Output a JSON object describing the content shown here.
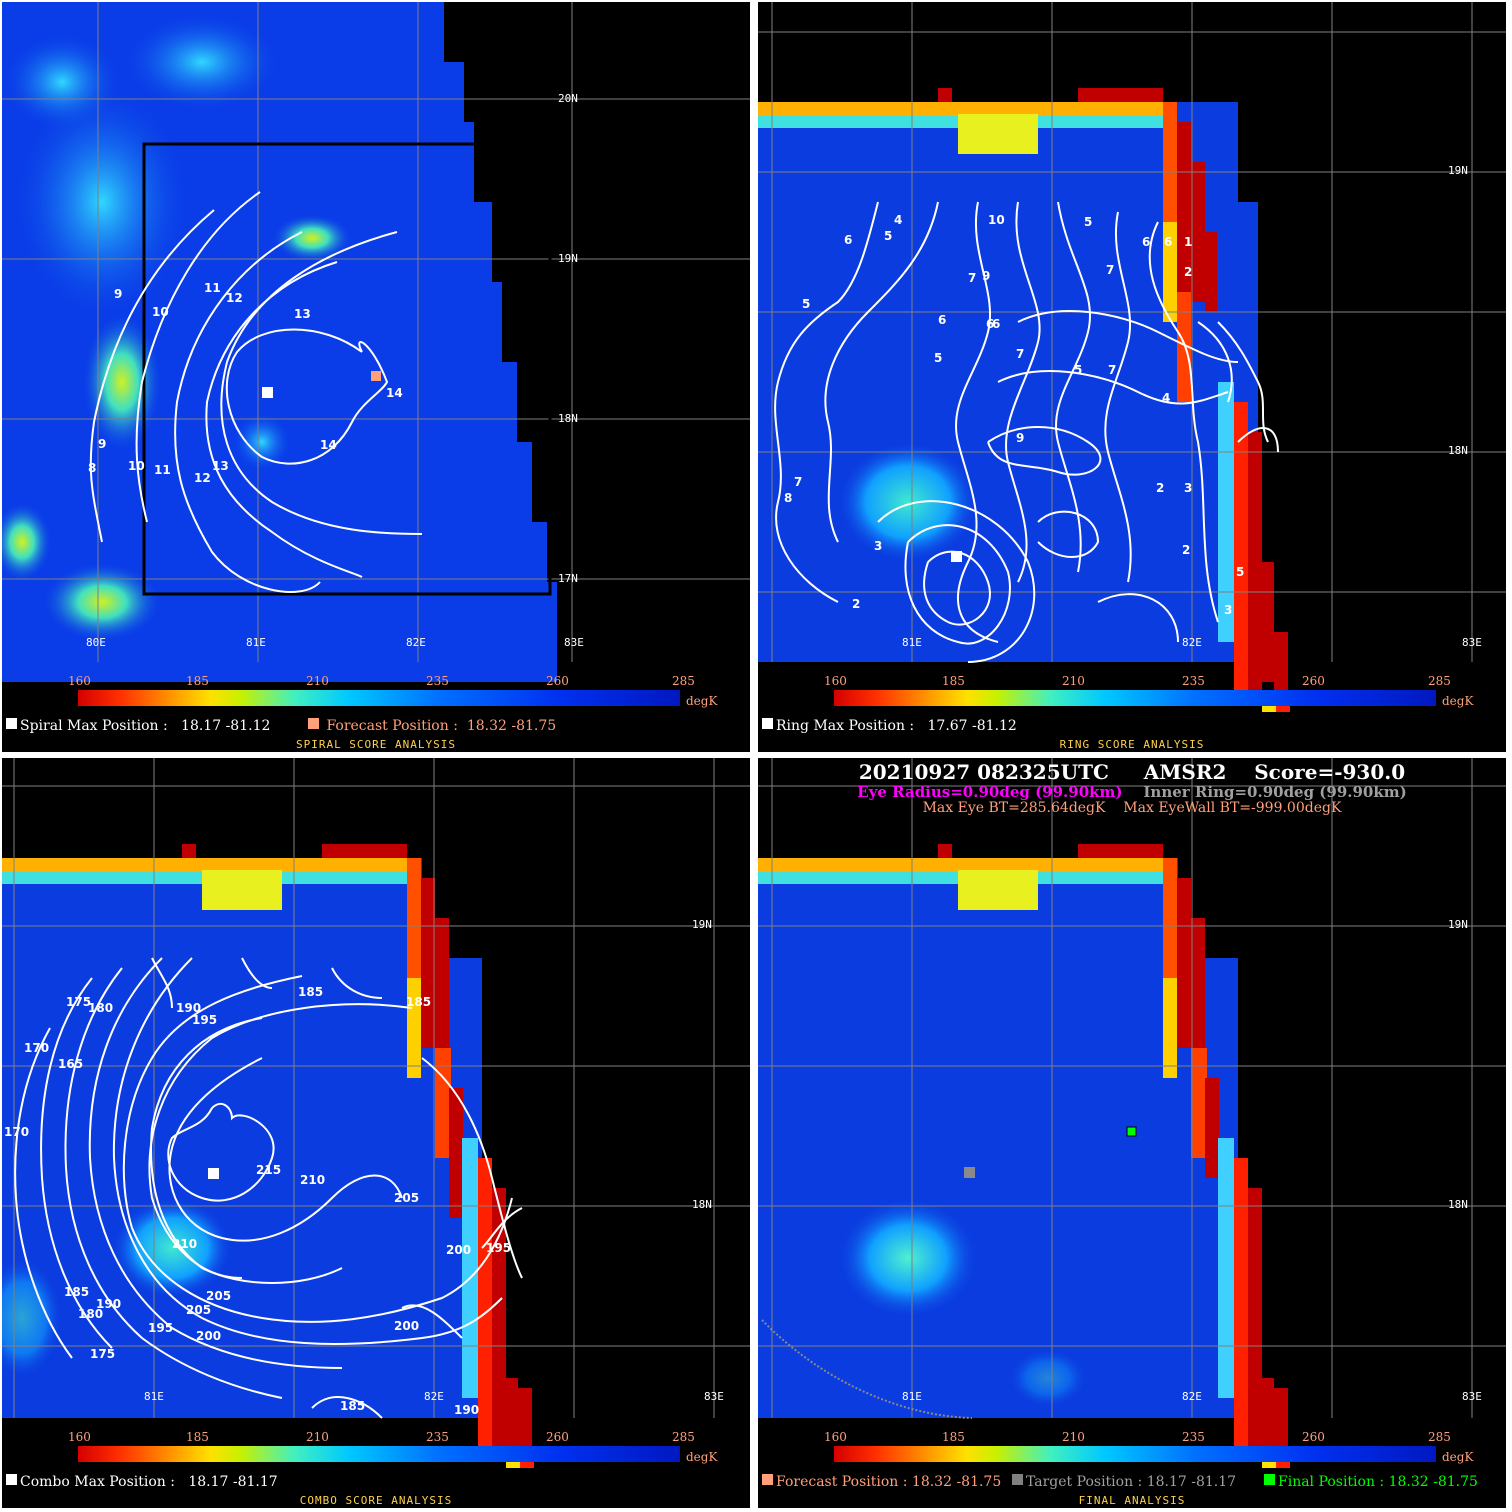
{
  "colorbar": {
    "ticks": [
      "160",
      "185",
      "210",
      "235",
      "260",
      "285"
    ],
    "unit": "degK"
  },
  "colors": {
    "background": "#000000",
    "contour": "#ffffff",
    "forecast_marker": "#ffa07a",
    "target_marker": "#808080",
    "final_marker": "#00ff00",
    "eye_radius_text": "#ff00ff",
    "inner_ring_text": "#a0a0a0",
    "bt_text": "#ffa07a",
    "panel_title": "#ffd24a"
  },
  "panels": {
    "spiral": {
      "title": "SPIRAL SCORE ANALYSIS",
      "lat_labels": [
        "20N",
        "19N",
        "18N",
        "17N"
      ],
      "lon_labels": [
        "80E",
        "81E",
        "82E",
        "83E"
      ],
      "contour_labels": [
        "9",
        "10",
        "11",
        "12",
        "13",
        "14",
        "14",
        "9",
        "8",
        "10",
        "11",
        "12",
        "13"
      ],
      "max_label": "Spiral Max Position :",
      "max_value": "18.17  -81.12",
      "forecast_label": "Forecast Position :",
      "forecast_value": "18.32  -81.75"
    },
    "ring": {
      "title": "RING SCORE ANALYSIS",
      "lat_labels": [
        "19N",
        "18N"
      ],
      "lon_labels": [
        "81E",
        "82E",
        "83E"
      ],
      "contour_labels": [
        "4",
        "10",
        "5",
        "6",
        "5",
        "6",
        "7",
        "9",
        "6",
        "7",
        "1",
        "2",
        "5",
        "6",
        "6",
        "7",
        "5",
        "6",
        "7",
        "4",
        "3",
        "2",
        "2",
        "3",
        "5",
        "7",
        "3",
        "8",
        "5",
        "9",
        "2"
      ],
      "max_label": "Ring Max Position :",
      "max_value": "17.67  -81.12"
    },
    "combo": {
      "title": "COMBO SCORE ANALYSIS",
      "lat_labels": [
        "19N",
        "18N"
      ],
      "lon_labels": [
        "81E",
        "82E",
        "83E"
      ],
      "contour_labels": [
        "175",
        "180",
        "190",
        "195",
        "185",
        "185",
        "170",
        "165",
        "170",
        "215",
        "210",
        "205",
        "210",
        "200",
        "195",
        "205",
        "200",
        "200",
        "185",
        "190",
        "175",
        "185",
        "190",
        "180",
        "195",
        "205"
      ],
      "max_label": "Combo Max Position :",
      "max_value": "18.17  -81.17"
    },
    "final": {
      "title": "FINAL ANALYSIS",
      "lat_labels": [
        "19N",
        "18N"
      ],
      "lon_labels": [
        "81E",
        "82E",
        "83E"
      ],
      "header": {
        "date": "20210927",
        "time": "082325UTC",
        "sensor": "AMSR2",
        "score": "Score=-930.0",
        "eye_radius": "Eye Radius=0.90deg (99.90km)",
        "inner_ring": "Inner Ring=0.90deg (99.90km)",
        "max_eye_bt": "Max Eye BT=285.64degK",
        "max_eyewall_bt": "Max EyeWall BT=-999.00degK"
      },
      "forecast_label": "Forecast Position : 18.32  -81.75",
      "target_label": "Target Position : 18.17  -81.17",
      "final_label": "Final Position : 18.32  -81.75"
    }
  }
}
